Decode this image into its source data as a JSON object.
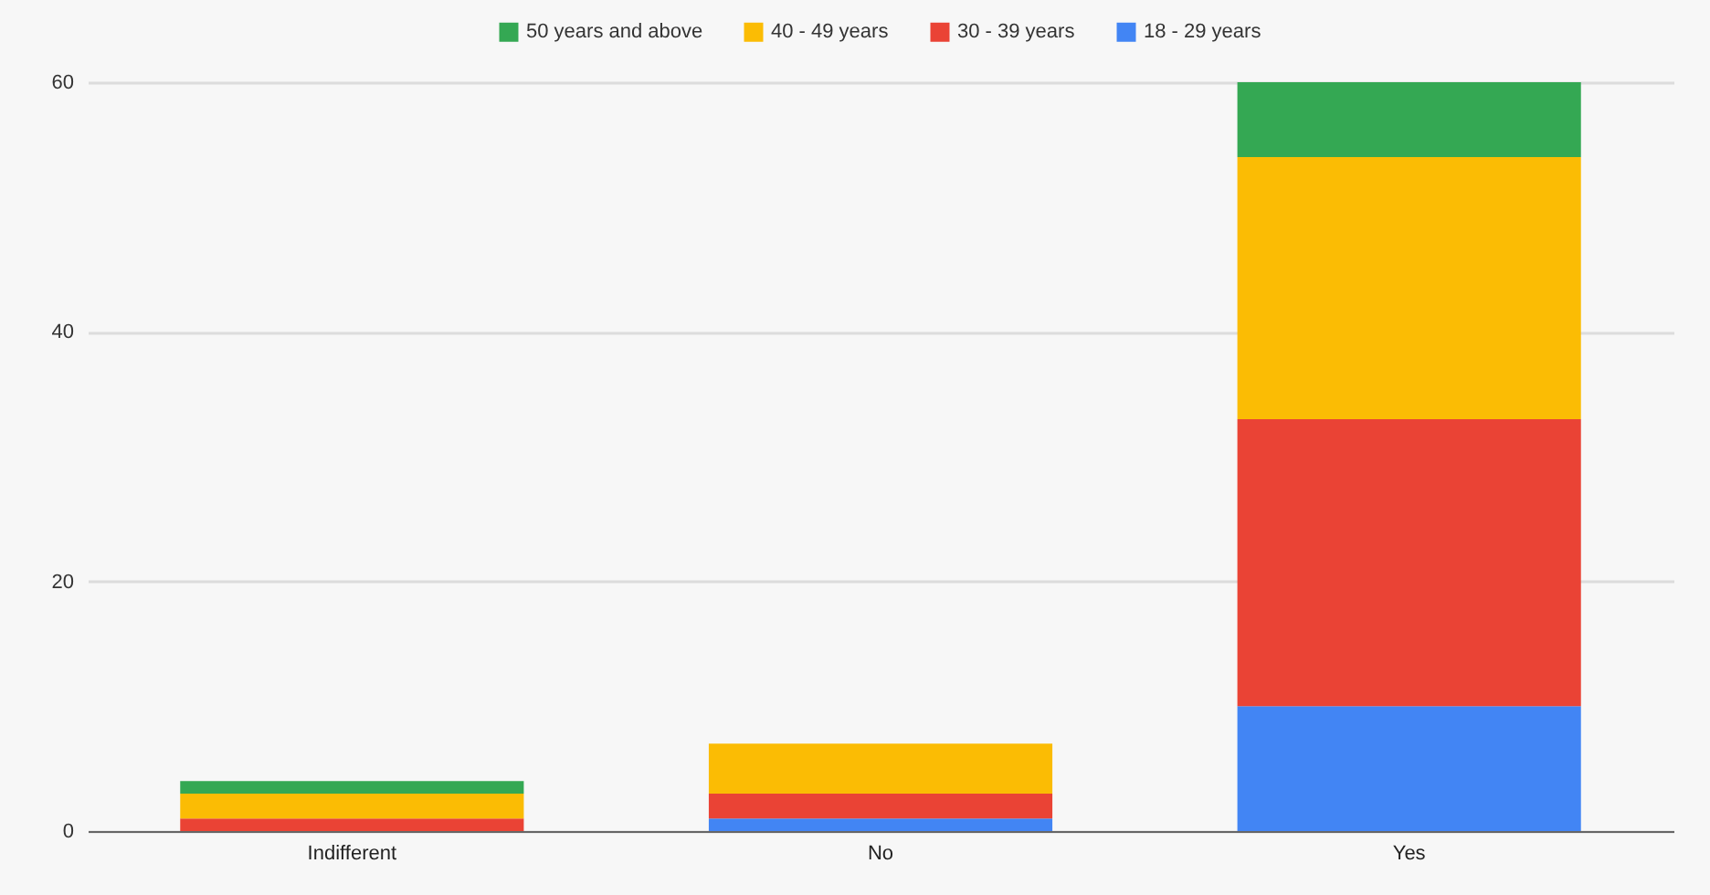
{
  "chart_data": {
    "type": "bar",
    "stacked": true,
    "categories": [
      "Indifferent",
      "No",
      "Yes"
    ],
    "series": [
      {
        "name": "18 - 29 years",
        "color": "#4285f4",
        "values": [
          0,
          1,
          10
        ]
      },
      {
        "name": "30 - 39 years",
        "color": "#ea4335",
        "values": [
          1,
          2,
          23
        ]
      },
      {
        "name": "40 - 49 years",
        "color": "#fbbc04",
        "values": [
          2,
          4,
          21
        ]
      },
      {
        "name": "50 years and above",
        "color": "#34a853",
        "values": [
          1,
          0,
          6
        ]
      }
    ],
    "ylim": [
      0,
      60
    ],
    "yticks": [
      0,
      20,
      40,
      60
    ],
    "grid": "y",
    "legend": "top"
  }
}
